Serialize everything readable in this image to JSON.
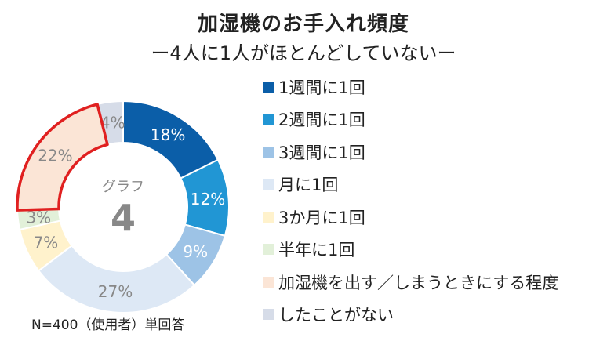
{
  "chart_data": {
    "type": "pie",
    "title": "加湿機のお手入れ頻度",
    "subtitle": "ー4人に1人がほとんどしていないー",
    "center_label": "グラフ",
    "center_number": "4",
    "note": "N=400（使用者）単回答",
    "legend_position": "right",
    "categories": [
      "1週間に1回",
      "2週間に1回",
      "3週間に1回",
      "月に1回",
      "3か月に1回",
      "半年に1回",
      "加湿機を出す／しまうときにする程度",
      "したことがない"
    ],
    "values": [
      18,
      12,
      9,
      27,
      7,
      3,
      22,
      4
    ],
    "labels": [
      "18%",
      "12%",
      "9%",
      "27%",
      "7%",
      "3%",
      "22%",
      "4%"
    ],
    "colors": [
      "#0b5ea8",
      "#2196d4",
      "#9dc3e6",
      "#dde8f5",
      "#fff2cc",
      "#e2f0d9",
      "#fbe5d6",
      "#d6dce8"
    ],
    "label_colors": [
      "#ffffff",
      "#ffffff",
      "#ffffff",
      "#888888",
      "#888888",
      "#888888",
      "#888888",
      "#888888"
    ],
    "highlight_index": 6,
    "highlight_color": "#e02020"
  }
}
